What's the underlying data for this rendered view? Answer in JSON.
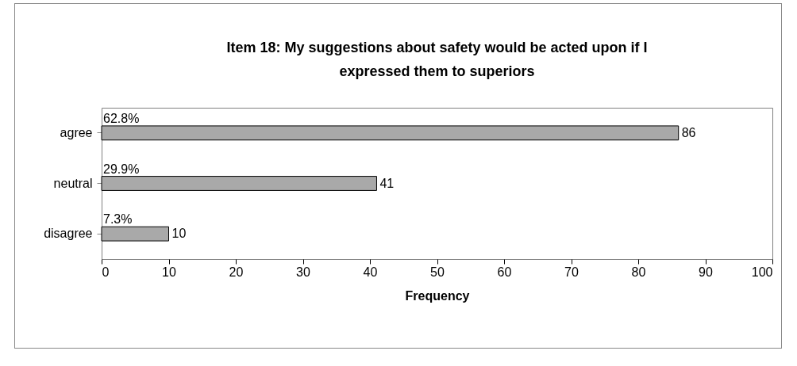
{
  "chart_data": {
    "type": "bar",
    "orientation": "horizontal",
    "title": "Item 18: My suggestions about safety would be acted upon if I expressed them to superiors",
    "categories": [
      "agree",
      "neutral",
      "disagree"
    ],
    "values": [
      86,
      41,
      10
    ],
    "color": "#a9a9a9",
    "xlim": [
      0,
      100
    ],
    "xticks": [
      0,
      10,
      20,
      30,
      40,
      50,
      60,
      70,
      80,
      90,
      100
    ],
    "xlabel": "Frequency",
    "data_labels": true,
    "grid": false,
    "annotations": [
      "62.8%",
      "29.9%",
      "7.3%"
    ]
  }
}
